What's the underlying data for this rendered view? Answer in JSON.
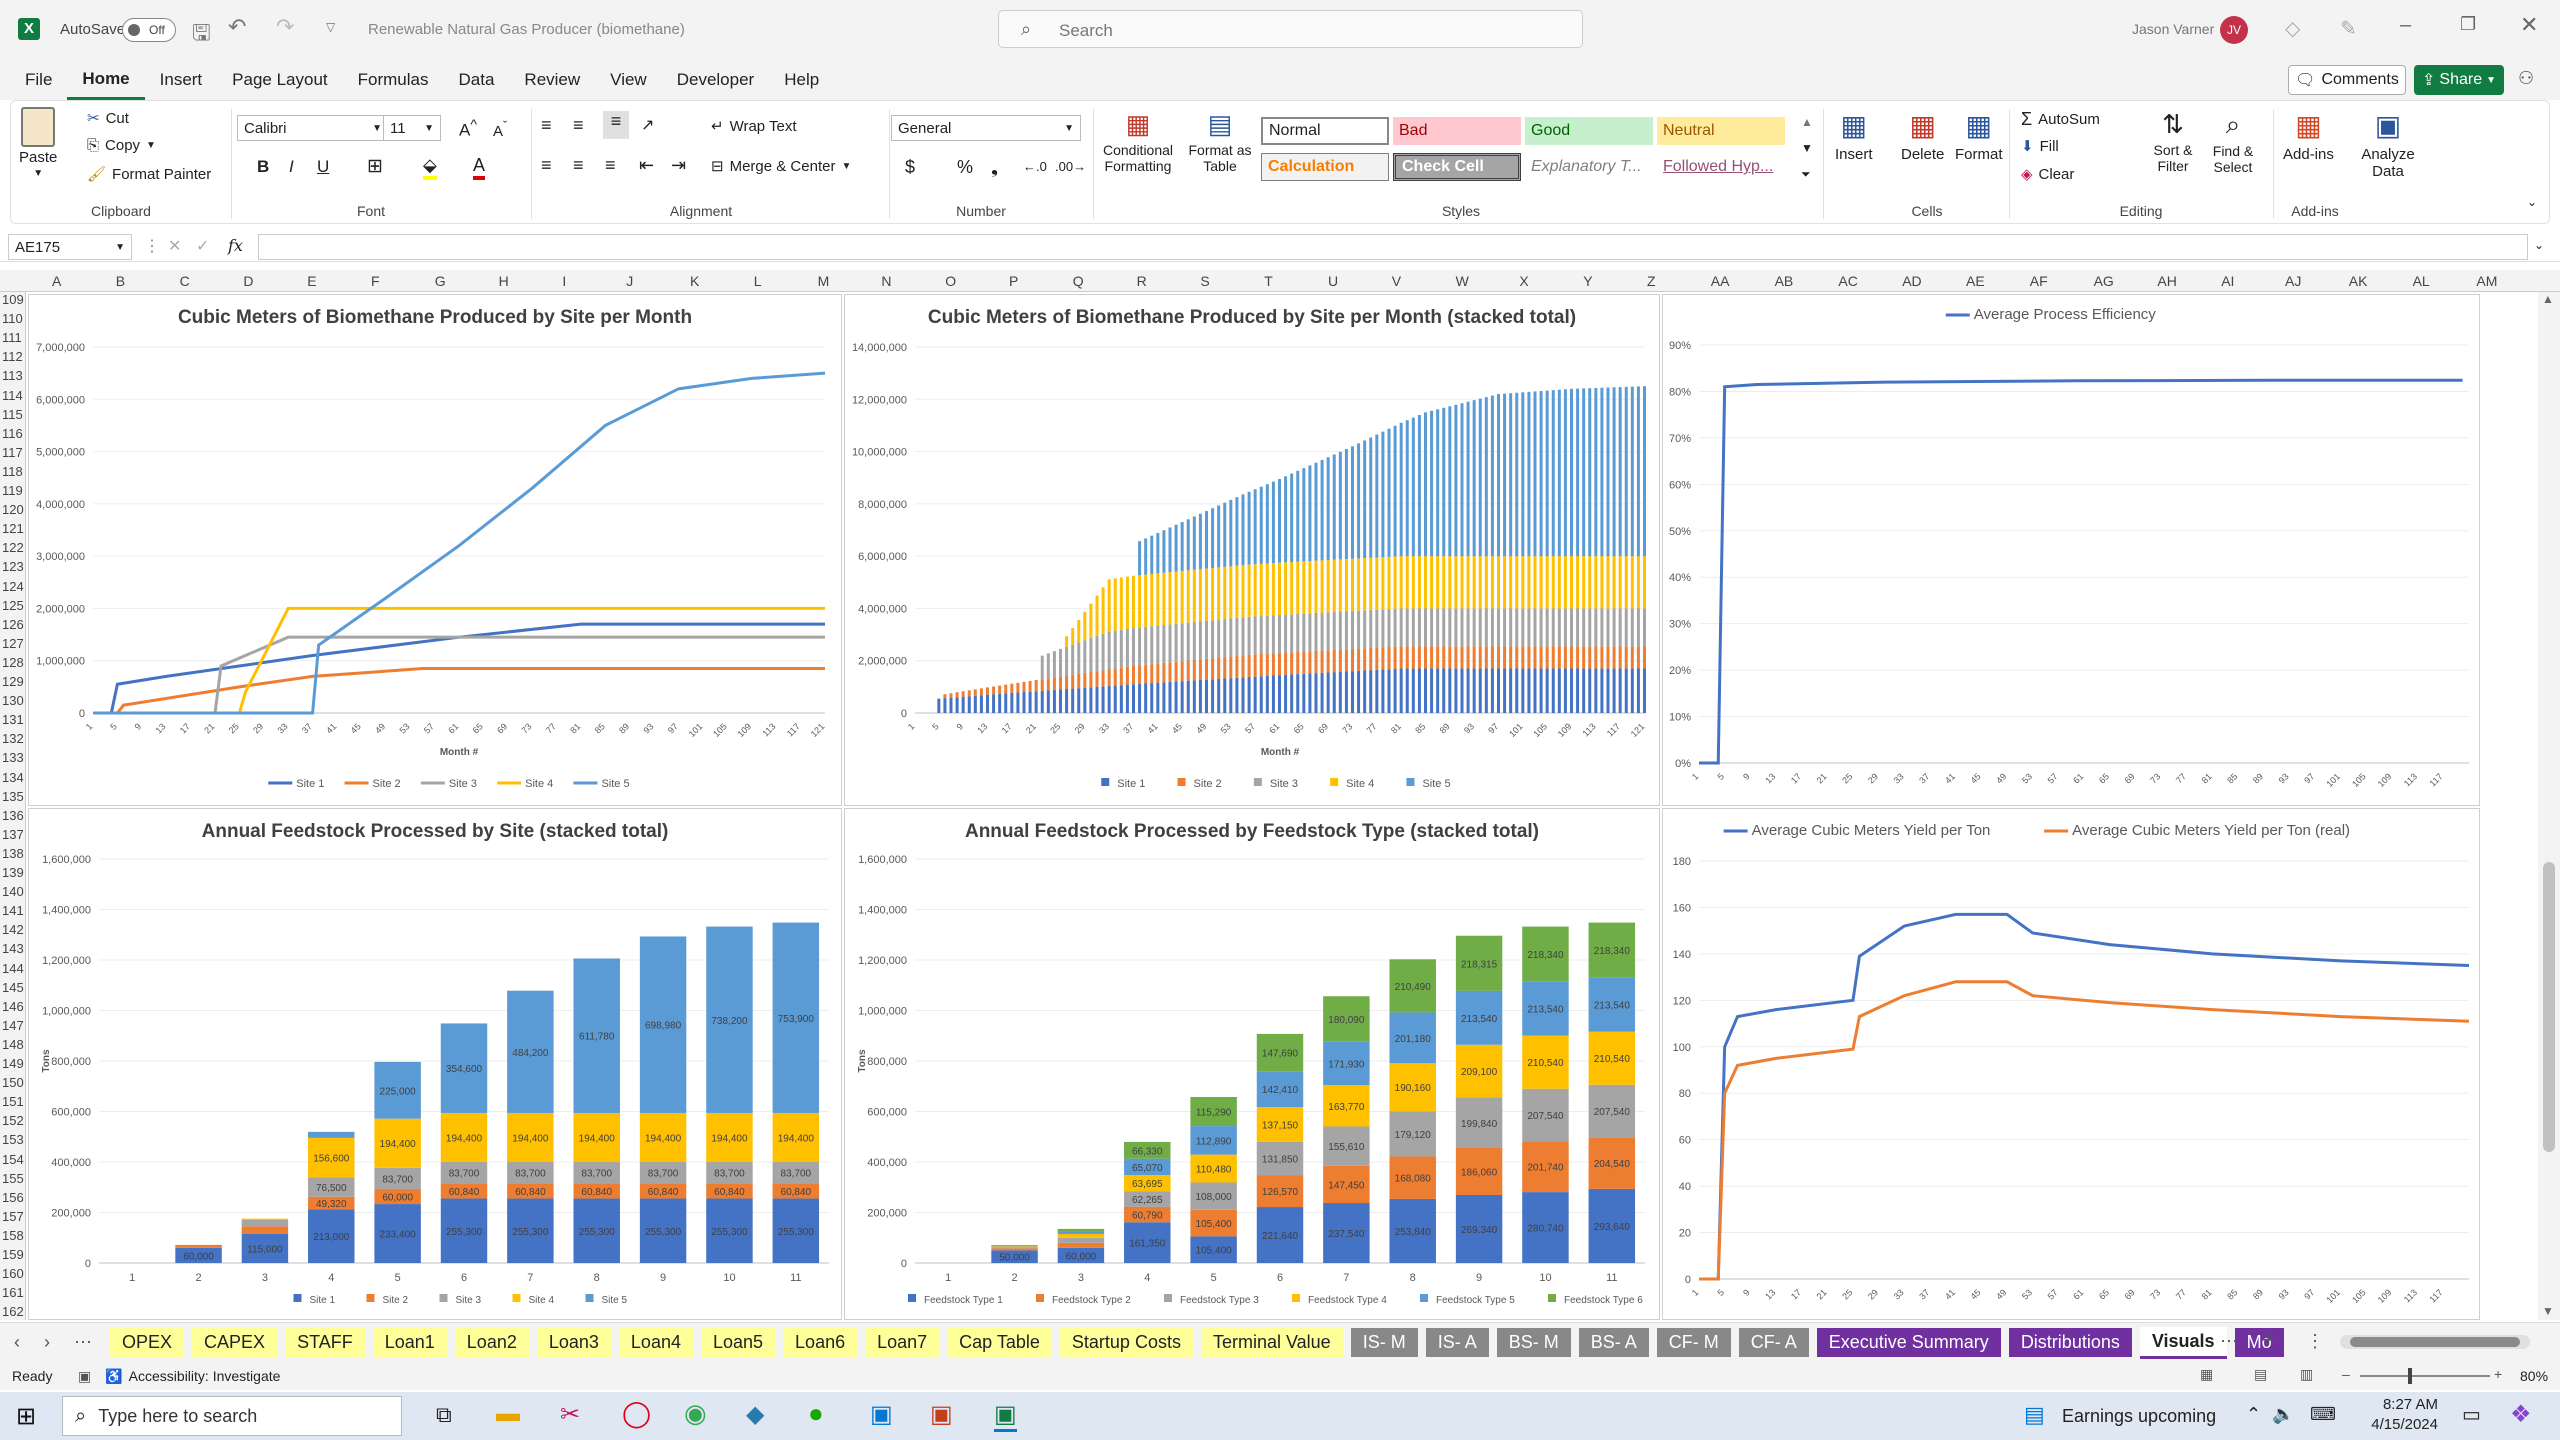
{
  "titlebar": {
    "autosave": "AutoSave",
    "toggle": "Off",
    "doc_title": "Renewable Natural Gas Producer (biomethane)",
    "search_placeholder": "Search",
    "user": "Jason Varner",
    "initials": "JV"
  },
  "menu": [
    "File",
    "Home",
    "Insert",
    "Page Layout",
    "Formulas",
    "Data",
    "Review",
    "View",
    "Developer",
    "Help"
  ],
  "menu_right": {
    "comments": "Comments",
    "share": "Share"
  },
  "ribbon": {
    "clipboard": {
      "paste": "Paste",
      "cut": "Cut",
      "copy": "Copy",
      "format_painter": "Format Painter",
      "label": "Clipboard"
    },
    "font": {
      "name": "Calibri",
      "size": "11",
      "label": "Font"
    },
    "alignment": {
      "wrap": "Wrap Text",
      "merge": "Merge & Center",
      "label": "Alignment"
    },
    "number": {
      "format": "General",
      "label": "Number"
    },
    "styles": {
      "cond": "Conditional Formatting",
      "fmt_table": "Format as Table",
      "normal": "Normal",
      "bad": "Bad",
      "good": "Good",
      "neutral": "Neutral",
      "calculation": "Calculation",
      "check_cell": "Check Cell",
      "explanatory": "Explanatory T...",
      "followed": "Followed Hyp...",
      "label": "Styles"
    },
    "cells": {
      "insert": "Insert",
      "delete": "Delete",
      "format": "Format",
      "label": "Cells"
    },
    "editing": {
      "autosum": "AutoSum",
      "fill": "Fill",
      "clear": "Clear",
      "sort": "Sort & Filter",
      "find": "Find & Select",
      "label": "Editing"
    },
    "addins": {
      "addins": "Add-ins",
      "analyze": "Analyze Data",
      "label": "Add-ins"
    }
  },
  "formula_bar": {
    "name_box": "AE175",
    "fx": "fx",
    "value": ""
  },
  "columns": [
    "A",
    "B",
    "C",
    "D",
    "E",
    "F",
    "G",
    "H",
    "I",
    "J",
    "K",
    "L",
    "M",
    "N",
    "O",
    "P",
    "Q",
    "R",
    "S",
    "T",
    "U",
    "V",
    "W",
    "X",
    "Y",
    "Z",
    "AA",
    "AB",
    "AC",
    "AD",
    "AE",
    "AF",
    "AG",
    "AH",
    "AI",
    "AJ",
    "AK",
    "AL",
    "AM"
  ],
  "rows_start": 109,
  "rows_end": 162,
  "sheet_tabs": [
    "OPEX",
    "CAPEX",
    "STAFF",
    "Loan1",
    "Loan2",
    "Loan3",
    "Loan4",
    "Loan5",
    "Loan6",
    "Loan7",
    "Cap Table",
    "Startup Costs",
    "Terminal Value",
    "IS- M",
    "IS- A",
    "BS- M",
    "BS- A",
    "CF- M",
    "CF- A",
    "Executive Summary",
    "Distributions",
    "Visuals",
    "Mo"
  ],
  "status": {
    "ready": "Ready",
    "accessibility": "Accessibility: Investigate",
    "zoom": "80%"
  },
  "taskbar": {
    "search": "Type here to search",
    "news": "Earnings upcoming",
    "time": "8:27 AM",
    "date": "4/15/2024"
  },
  "chart_data": [
    {
      "id": "c1",
      "type": "line",
      "title": "Cubic Meters of Biomethane Produced by Site per Month",
      "xlabel": "Month #",
      "ylim": [
        0,
        7000000
      ],
      "yticks": [
        "0",
        "1,000,000",
        "2,000,000",
        "3,000,000",
        "4,000,000",
        "5,000,000",
        "6,000,000",
        "7,000,000"
      ],
      "xticks": [
        "1",
        "5",
        "9",
        "13",
        "17",
        "21",
        "25",
        "29",
        "33",
        "37",
        "41",
        "45",
        "49",
        "53",
        "57",
        "61",
        "65",
        "69",
        "73",
        "77",
        "81",
        "85",
        "89",
        "93",
        "97",
        "101",
        "105",
        "109",
        "113",
        "117",
        "121"
      ],
      "series": [
        {
          "name": "Site 1",
          "color": "#4472c4",
          "points": [
            [
              1,
              0
            ],
            [
              4,
              0
            ],
            [
              5,
              550000
            ],
            [
              13,
              700000
            ],
            [
              37,
              1100000
            ],
            [
              61,
              1450000
            ],
            [
              81,
              1700000
            ],
            [
              121,
              1700000
            ]
          ]
        },
        {
          "name": "Site 2",
          "color": "#ed7d31",
          "points": [
            [
              1,
              0
            ],
            [
              5,
              0
            ],
            [
              6,
              150000
            ],
            [
              25,
              500000
            ],
            [
              37,
              700000
            ],
            [
              55,
              850000
            ],
            [
              121,
              850000
            ]
          ]
        },
        {
          "name": "Site 3",
          "color": "#a5a5a5",
          "points": [
            [
              1,
              0
            ],
            [
              21,
              0
            ],
            [
              22,
              900000
            ],
            [
              33,
              1450000
            ],
            [
              121,
              1450000
            ]
          ]
        },
        {
          "name": "Site 4",
          "color": "#ffc000",
          "points": [
            [
              1,
              0
            ],
            [
              25,
              0
            ],
            [
              26,
              400000
            ],
            [
              33,
              2000000
            ],
            [
              121,
              2000000
            ]
          ]
        },
        {
          "name": "Site 5",
          "color": "#5b9bd5",
          "points": [
            [
              1,
              0
            ],
            [
              37,
              0
            ],
            [
              38,
              1300000
            ],
            [
              49,
              2200000
            ],
            [
              61,
              3200000
            ],
            [
              73,
              4300000
            ],
            [
              85,
              5500000
            ],
            [
              97,
              6200000
            ],
            [
              109,
              6400000
            ],
            [
              121,
              6500000
            ]
          ]
        }
      ]
    },
    {
      "id": "c2",
      "type": "bar",
      "stacked": true,
      "title": "Cubic Meters of Biomethane Produced by Site per Month (stacked total)",
      "xlabel": "Month #",
      "ylim": [
        0,
        14000000
      ],
      "yticks": [
        "0",
        "2,000,000",
        "4,000,000",
        "6,000,000",
        "8,000,000",
        "10,000,000",
        "12,000,000",
        "14,000,000"
      ],
      "legend": [
        "Site 1",
        "Site 2",
        "Site 3",
        "Site 4",
        "Site 5"
      ]
    },
    {
      "id": "c3",
      "type": "line",
      "title": "",
      "legend": [
        "Average Process Efficiency"
      ],
      "ylim": [
        0,
        90
      ],
      "yticks": [
        "0%",
        "10%",
        "20%",
        "30%",
        "40%",
        "50%",
        "60%",
        "70%",
        "80%",
        "90%"
      ],
      "series": [
        {
          "name": "Average Process Efficiency",
          "points": [
            [
              1,
              0
            ],
            [
              2,
              0
            ],
            [
              3,
              0
            ],
            [
              4,
              0
            ],
            [
              5,
              81
            ],
            [
              10,
              81.5
            ],
            [
              30,
              82
            ],
            [
              60,
              82.3
            ],
            [
              90,
              82.4
            ],
            [
              120,
              82.4
            ]
          ]
        }
      ]
    },
    {
      "id": "c4",
      "type": "bar",
      "stacked": true,
      "title": "Annual Feedstock Processed by Site (stacked total)",
      "ylabel": "Tons",
      "ylim": [
        0,
        1600000
      ],
      "yticks": [
        "0",
        "200,000",
        "400,000",
        "600,000",
        "800,000",
        "1,000,000",
        "1,200,000",
        "1,400,000",
        "1,600,000"
      ],
      "categories": [
        "1",
        "2",
        "3",
        "4",
        "5",
        "6",
        "7",
        "8",
        "9",
        "10",
        "11"
      ],
      "series": [
        {
          "name": "Site 1",
          "color": "#4472c4",
          "values": [
            0,
            60000,
            115000,
            213000,
            233400,
            255300,
            255300,
            255300,
            255300,
            255300,
            255300
          ]
        },
        {
          "name": "Site 2",
          "color": "#ed7d31",
          "values": [
            0,
            11760,
            30000,
            49320,
            60000,
            60840,
            60840,
            60840,
            60840,
            60840,
            60840
          ]
        },
        {
          "name": "Site 3",
          "color": "#a5a5a5",
          "values": [
            0,
            0,
            25400,
            76500,
            83700,
            83700,
            83700,
            83700,
            83700,
            83700,
            83700
          ]
        },
        {
          "name": "Site 4",
          "color": "#ffc000",
          "values": [
            0,
            0,
            5400,
            156600,
            194400,
            194400,
            194400,
            194400,
            194400,
            194400,
            194400
          ]
        },
        {
          "name": "Site 5",
          "color": "#5b9bd5",
          "values": [
            0,
            0,
            0,
            24000,
            225000,
            354600,
            484200,
            611780,
            698980,
            738200,
            753900
          ]
        }
      ]
    },
    {
      "id": "c5",
      "type": "bar",
      "stacked": true,
      "title": "Annual Feedstock Processed by Feedstock Type (stacked total)",
      "ylabel": "Tons",
      "ylim": [
        0,
        1600000
      ],
      "yticks": [
        "0",
        "200,000",
        "400,000",
        "600,000",
        "800,000",
        "1,000,000",
        "1,200,000",
        "1,400,000",
        "1,600,000"
      ],
      "categories": [
        "1",
        "2",
        "3",
        "4",
        "5",
        "6",
        "7",
        "8",
        "9",
        "10",
        "11"
      ],
      "series": [
        {
          "name": "Feedstock Type 1",
          "color": "#4472c4",
          "values": [
            0,
            50000,
            60000,
            161350,
            105400,
            221640,
            237540,
            253840,
            269340,
            280740,
            293640
          ]
        },
        {
          "name": "Feedstock Type 2",
          "color": "#ed7d31",
          "values": [
            0,
            8000,
            20000,
            60790,
            105400,
            126570,
            147450,
            168080,
            186060,
            201740,
            204540
          ]
        },
        {
          "name": "Feedstock Type 3",
          "color": "#a5a5a5",
          "values": [
            0,
            5000,
            20000,
            62265,
            108000,
            131850,
            155610,
            179120,
            199840,
            207540,
            207540
          ]
        },
        {
          "name": "Feedstock Type 4",
          "color": "#ffc000",
          "values": [
            0,
            3000,
            15000,
            63695,
            110480,
            137150,
            163770,
            190160,
            209100,
            210540,
            210540
          ]
        },
        {
          "name": "Feedstock Type 5",
          "color": "#5b9bd5",
          "values": [
            0,
            3000,
            10000,
            65070,
            112890,
            142410,
            171930,
            201180,
            213540,
            213540,
            213540
          ]
        },
        {
          "name": "Feedstock Type 6",
          "color": "#70ad47",
          "values": [
            0,
            2000,
            10000,
            66330,
            115290,
            147690,
            180090,
            210490,
            218315,
            218340,
            218340
          ]
        }
      ]
    },
    {
      "id": "c6",
      "type": "line",
      "title": "",
      "ylim": [
        0,
        180
      ],
      "yticks": [
        "0",
        "20",
        "40",
        "60",
        "80",
        "100",
        "120",
        "140",
        "160",
        "180"
      ],
      "legend": [
        "Average Cubic Meters Yield per Ton",
        "Average Cubic Meters Yield per Ton (real)"
      ],
      "series": [
        {
          "name": "Average Cubic Meters Yield per Ton",
          "color": "#4472c4",
          "points": [
            [
              1,
              0
            ],
            [
              4,
              0
            ],
            [
              5,
              100
            ],
            [
              7,
              113
            ],
            [
              13,
              116
            ],
            [
              25,
              120
            ],
            [
              26,
              139
            ],
            [
              33,
              152
            ],
            [
              41,
              157
            ],
            [
              49,
              157
            ],
            [
              53,
              149
            ],
            [
              65,
              144
            ],
            [
              81,
              140
            ],
            [
              101,
              137
            ],
            [
              121,
              135
            ]
          ]
        },
        {
          "name": "Average Cubic Meters Yield per Ton (real)",
          "color": "#ed7d31",
          "points": [
            [
              1,
              0
            ],
            [
              4,
              0
            ],
            [
              5,
              80
            ],
            [
              7,
              92
            ],
            [
              13,
              95
            ],
            [
              25,
              99
            ],
            [
              26,
              113
            ],
            [
              33,
              122
            ],
            [
              41,
              128
            ],
            [
              49,
              128
            ],
            [
              53,
              122
            ],
            [
              65,
              119
            ],
            [
              81,
              116
            ],
            [
              101,
              113
            ],
            [
              121,
              111
            ]
          ]
        }
      ]
    }
  ]
}
